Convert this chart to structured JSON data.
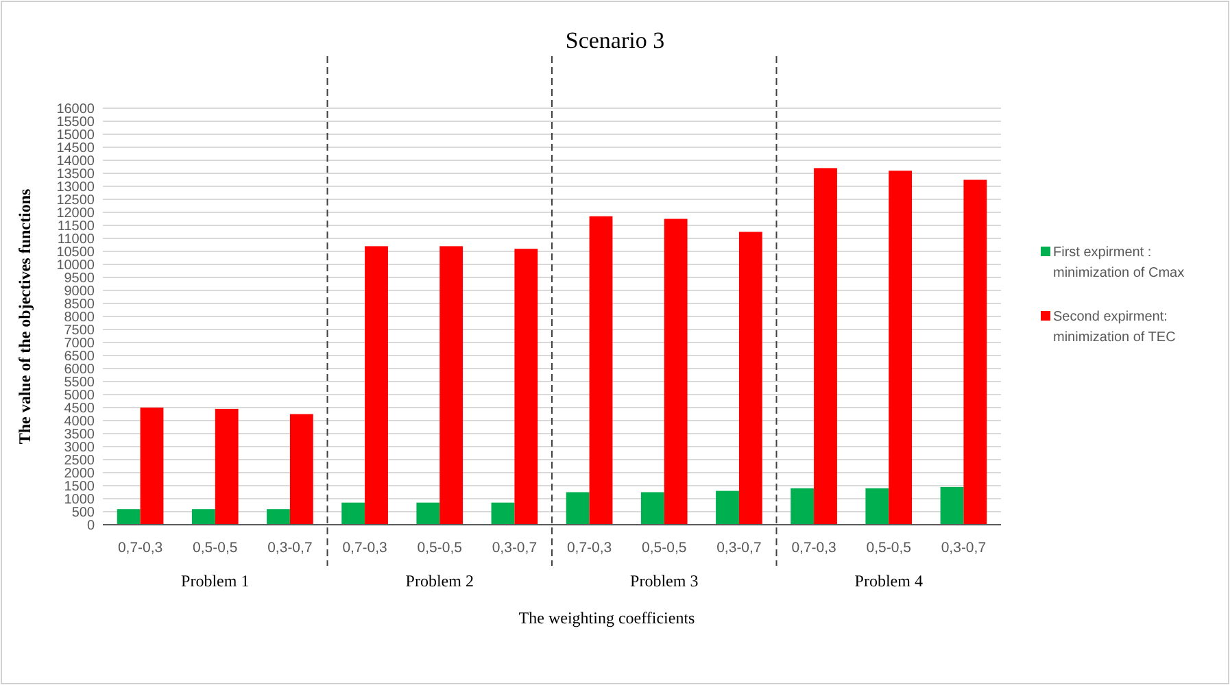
{
  "chart_data": {
    "type": "bar",
    "title": "Scenario 3",
    "xlabel": "The weighting coefficients",
    "ylabel": "The value of the objectives functions",
    "categories": [
      "0,7-0,3",
      "0,5-0,5",
      "0,3-0,7",
      "0,7-0,3",
      "0,5-0,5",
      "0,3-0,7",
      "0,7-0,3",
      "0,5-0,5",
      "0,3-0,7",
      "0,7-0,3",
      "0,5-0,5",
      "0,3-0,7"
    ],
    "series": [
      {
        "name": "First expirment : minimization of Cmax",
        "color": "#00b050",
        "values": [
          600,
          600,
          600,
          850,
          850,
          850,
          1250,
          1250,
          1300,
          1400,
          1400,
          1450
        ]
      },
      {
        "name": "Second expirment: minimization of TEC",
        "color": "#ff0000",
        "values": [
          4500,
          4450,
          4250,
          10700,
          10700,
          10600,
          11850,
          11750,
          11250,
          13700,
          13600,
          13250
        ]
      }
    ],
    "annotations": [
      "Problem 1",
      "Problem 2",
      "Problem 3",
      "Problem 4"
    ],
    "ylim": [
      0,
      16000
    ],
    "yticks": [
      0,
      500,
      1000,
      1500,
      2000,
      2500,
      3000,
      3500,
      4000,
      4500,
      5000,
      5500,
      6000,
      6500,
      7000,
      7500,
      8000,
      8500,
      9000,
      9500,
      10000,
      10500,
      11000,
      11500,
      12000,
      12500,
      13000,
      13500,
      14000,
      14500,
      15000,
      15500,
      16000
    ],
    "grid": "y",
    "legend": "right"
  }
}
